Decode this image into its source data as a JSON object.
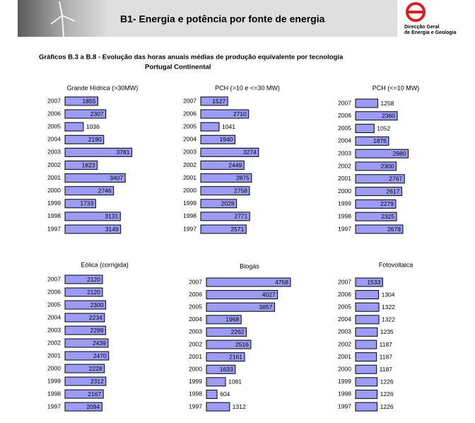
{
  "header": {
    "title": "B1- Energia e potência por fonte de energia",
    "logo_text": [
      "Direcção Geral",
      "de Energia e Geologia"
    ]
  },
  "section": {
    "title": "Gráficos B.3 a B.8 - Evolução das horas anuais médias de produção equivalente por tecnologia",
    "subtitle": "Portugal Continental"
  },
  "chart_data": [
    {
      "type": "bar",
      "orientation": "horizontal",
      "title": "Grande Hídrica (>30MW)",
      "color": "#9c9cf4",
      "categories": [
        "2007",
        "2006",
        "2005",
        "2004",
        "2003",
        "2002",
        "2001",
        "2000",
        "1999",
        "1998",
        "1997"
      ],
      "values": [
        1855,
        2307,
        1036,
        2190,
        3781,
        1823,
        3407,
        2746,
        1733,
        3131,
        3149
      ]
    },
    {
      "type": "bar",
      "orientation": "horizontal",
      "title": "PCH (>10 e <=30 MW)",
      "color": "#9c9cf4",
      "categories": [
        "2007",
        "2006",
        "2005",
        "2004",
        "2003",
        "2002",
        "2001",
        "2000",
        "1999",
        "1998",
        "1997"
      ],
      "values": [
        1527,
        2710,
        1041,
        1940,
        3274,
        2449,
        2875,
        2758,
        2028,
        2771,
        2571
      ]
    },
    {
      "type": "bar",
      "orientation": "horizontal",
      "title": "PCH (<=10 MW)",
      "color": "#9c9cf4",
      "categories": [
        "2007",
        "2006",
        "2005",
        "2004",
        "2003",
        "2002",
        "2001",
        "2000",
        "1999",
        "1998",
        "1997"
      ],
      "values": [
        1258,
        2360,
        1052,
        1876,
        2980,
        2300,
        2767,
        2617,
        2279,
        2325,
        2678
      ]
    },
    {
      "type": "bar",
      "orientation": "horizontal",
      "title": "Eólica (corrigida)",
      "color": "#9c9cf4",
      "categories": [
        "2007",
        "2006",
        "2005",
        "2004",
        "2003",
        "2002",
        "2001",
        "2000",
        "1999",
        "1998",
        "1997"
      ],
      "values": [
        2120,
        2120,
        2300,
        2234,
        2299,
        2439,
        2470,
        2228,
        2312,
        2167,
        2094
      ]
    },
    {
      "type": "bar",
      "orientation": "horizontal",
      "title": "Biogás",
      "color": "#9c9cf4",
      "categories": [
        "2007",
        "2006",
        "2005",
        "2004",
        "2003",
        "2002",
        "2001",
        "2000",
        "1999",
        "1998",
        "1997"
      ],
      "values": [
        4758,
        4027,
        3857,
        1968,
        2262,
        2516,
        2161,
        1633,
        1081,
        604,
        1312
      ]
    },
    {
      "type": "bar",
      "orientation": "horizontal",
      "title": "Fotovoltaica",
      "color": "#9c9cf4",
      "categories": [
        "2007",
        "2006",
        "2005",
        "2004",
        "2003",
        "2002",
        "2001",
        "2000",
        "1999",
        "1998",
        "1997"
      ],
      "values": [
        1533,
        1304,
        1322,
        1322,
        1235,
        1187,
        1187,
        1187,
        1226,
        1226,
        1226
      ]
    }
  ]
}
